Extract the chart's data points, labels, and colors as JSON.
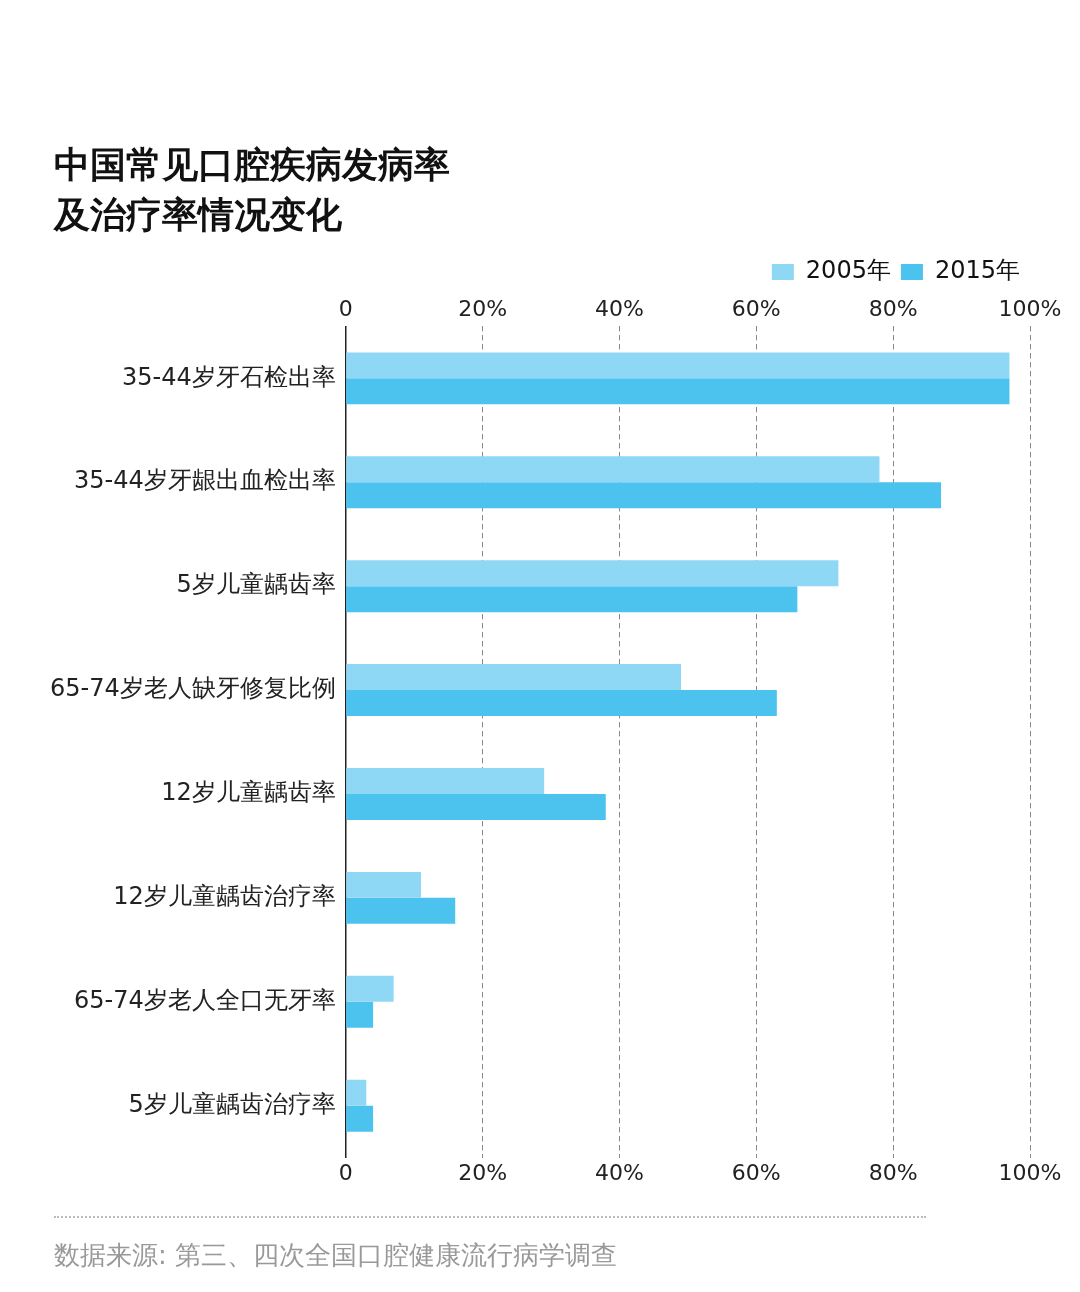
{
  "chart_data": {
    "type": "bar",
    "orientation": "horizontal",
    "title": "中国常见口腔疾病发病率及治疗率情况变化",
    "categories": [
      "35-44岁牙石检出率",
      "35-44岁牙龈出血检出率",
      "5岁儿童龋齿率",
      "65-74岁老人缺牙修复比例",
      "12岁儿童龋齿率",
      "12岁儿童龋齿治疗率",
      "65-74岁老人全口无牙率",
      "5岁儿童龋齿治疗率"
    ],
    "series": [
      {
        "name": "2005年",
        "color": "#8fd8f5",
        "values": [
          97,
          78,
          72,
          49,
          29,
          11,
          7,
          3
        ]
      },
      {
        "name": "2015年",
        "color": "#4cc2ee",
        "values": [
          97,
          87,
          66,
          63,
          38,
          16,
          4,
          4
        ]
      }
    ],
    "xlim": [
      0,
      100
    ],
    "xticks": [
      0,
      {
        "value": 20,
        "label": "20%"
      },
      {
        "value": 40,
        "label": "40%"
      },
      {
        "value": 60,
        "label": "60%"
      },
      {
        "value": 80,
        "label": "80%"
      },
      {
        "value": 100,
        "label": "100%"
      }
    ],
    "x2lim": [
      0,
      100
    ],
    "x2ticks": [
      0,
      {
        "value": 20,
        "label": "20%"
      },
      {
        "value": 40,
        "label": "40%"
      },
      {
        "value": 60,
        "label": "60%"
      },
      {
        "value": 80,
        "label": "80%"
      },
      {
        "value": 100,
        "label": "100%"
      }
    ],
    "grid": "x",
    "legend": "top right",
    "annotations": [
      "数据来源: 第三、四次全国口腔健康流行病学调查"
    ]
  }
}
